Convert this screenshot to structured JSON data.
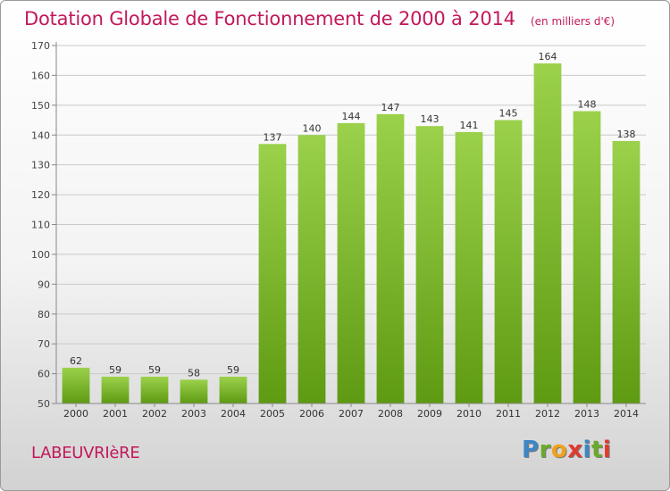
{
  "title": "Dotation Globale de Fonctionnement de 2000 à 2014",
  "subtitle": "(en milliers d'€)",
  "commune": "LABEUVRIèRE",
  "logo": "Proxiti",
  "colors": {
    "accent": "#c2185b",
    "bar_light": "#9bd14b",
    "bar_dark": "#5e9a12"
  },
  "chart_data": {
    "type": "bar",
    "categories": [
      "2000",
      "2001",
      "2002",
      "2003",
      "2004",
      "2005",
      "2006",
      "2007",
      "2008",
      "2009",
      "2010",
      "2011",
      "2012",
      "2013",
      "2014"
    ],
    "values": [
      62,
      59,
      59,
      58,
      59,
      137,
      140,
      144,
      147,
      143,
      141,
      145,
      164,
      148,
      138
    ],
    "ylim": [
      50,
      170
    ],
    "yticks": [
      50,
      60,
      70,
      80,
      90,
      100,
      110,
      120,
      130,
      140,
      150,
      160,
      170
    ],
    "grid": true,
    "title": "Dotation Globale de Fonctionnement de 2000 à 2014",
    "subtitle": "(en milliers d'€)",
    "xlabel": "",
    "ylabel": ""
  }
}
